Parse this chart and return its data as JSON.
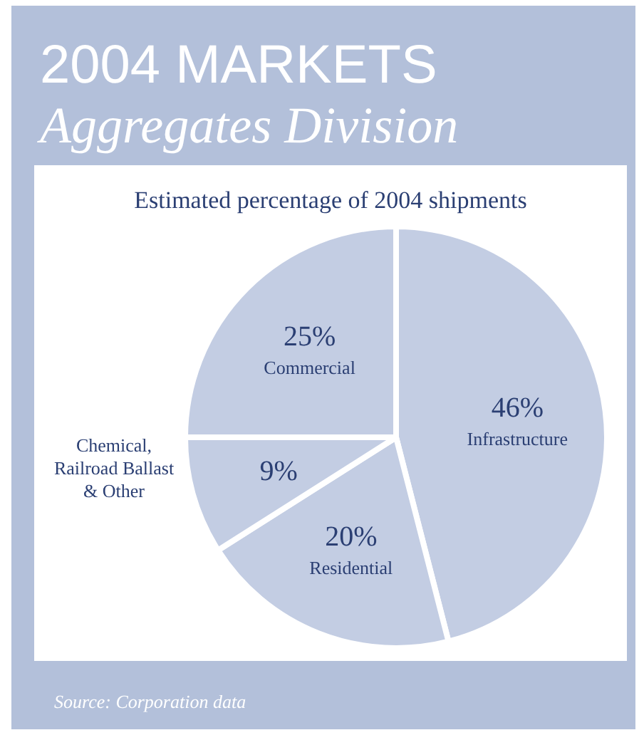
{
  "chart_data": {
    "type": "pie",
    "title": "2004 MARKETS",
    "subtitle": "Aggregates Division",
    "xlabel": "Estimated percentage of 2004 shipments",
    "categories": [
      "Infrastructure",
      "Residential",
      "Chemical, Railroad Ballast & Other",
      "Commercial"
    ],
    "values": [
      46,
      20,
      9,
      25
    ],
    "value_labels": [
      "46%",
      "20%",
      "9%",
      "25%"
    ],
    "colors": [
      "#c3cde3",
      "#c3cde3",
      "#c3cde3",
      "#c3cde3"
    ],
    "annotations": [
      "Source: Corporation data"
    ]
  }
}
